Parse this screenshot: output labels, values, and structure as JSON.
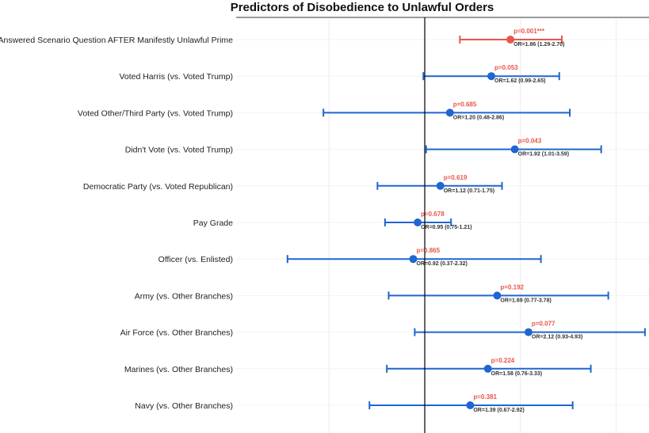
{
  "chart_data": {
    "type": "forest",
    "title": "Predictors of Disobedience to Unlawful Orders",
    "reference_line": 1.0,
    "colors": {
      "significant": "#e8564a",
      "nonsignificant": "#1f66d1",
      "reference": "#000000",
      "grid": "#ebebeb"
    },
    "rows": [
      {
        "label": "Answered Scenario Question AFTER Manifestly Unlawful Prime",
        "or": 1.86,
        "lo": 1.29,
        "hi": 2.7,
        "p": "p=0.001***",
        "or_text": "OR=1.86 (1.29-2.70)",
        "significant": true
      },
      {
        "label": "Voted Harris (vs. Voted Trump)",
        "or": 1.62,
        "lo": 0.99,
        "hi": 2.65,
        "p": "p=0.053",
        "or_text": "OR=1.62 (0.99-2.65)",
        "significant": false
      },
      {
        "label": "Voted Other/Third Party (vs. Voted Trump)",
        "or": 1.2,
        "lo": 0.48,
        "hi": 2.86,
        "p": "p=0.685",
        "or_text": "OR=1.20 (0.48-2.86)",
        "significant": false
      },
      {
        "label": "Didn't Vote (vs. Voted Trump)",
        "or": 1.92,
        "lo": 1.01,
        "hi": 3.59,
        "p": "p=0.043",
        "or_text": "OR=1.92 (1.01-3.59)",
        "significant": false
      },
      {
        "label": "Democratic Party (vs. Voted Republican)",
        "or": 1.12,
        "lo": 0.71,
        "hi": 1.75,
        "p": "p=0.619",
        "or_text": "OR=1.12 (0.71-1.75)",
        "significant": false
      },
      {
        "label": "Pay Grade",
        "or": 0.95,
        "lo": 0.75,
        "hi": 1.21,
        "p": "p=0.678",
        "or_text": "OR=0.95 (0.75-1.21)",
        "significant": false
      },
      {
        "label": "Officer (vs. Enlisted)",
        "or": 0.92,
        "lo": 0.37,
        "hi": 2.32,
        "p": "p=0.865",
        "or_text": "OR=0.92 (0.37-2.32)",
        "significant": false
      },
      {
        "label": "Army (vs. Other Branches)",
        "or": 1.69,
        "lo": 0.77,
        "hi": 3.78,
        "p": "p=0.192",
        "or_text": "OR=1.69 (0.77-3.78)",
        "significant": false
      },
      {
        "label": "Air Force (vs. Other Branches)",
        "or": 2.12,
        "lo": 0.93,
        "hi": 4.93,
        "p": "p=0.077",
        "or_text": "OR=2.12 (0.93-4.93)",
        "significant": false
      },
      {
        "label": "Marines (vs. Other Branches)",
        "or": 1.58,
        "lo": 0.76,
        "hi": 3.33,
        "p": "p=0.224",
        "or_text": "OR=1.58 (0.76-3.33)",
        "significant": false
      },
      {
        "label": "Navy (vs. Other Branches)",
        "or": 1.39,
        "lo": 0.67,
        "hi": 2.92,
        "p": "p=0.381",
        "or_text": "OR=1.39 (0.67-2.92)",
        "significant": false
      }
    ]
  }
}
